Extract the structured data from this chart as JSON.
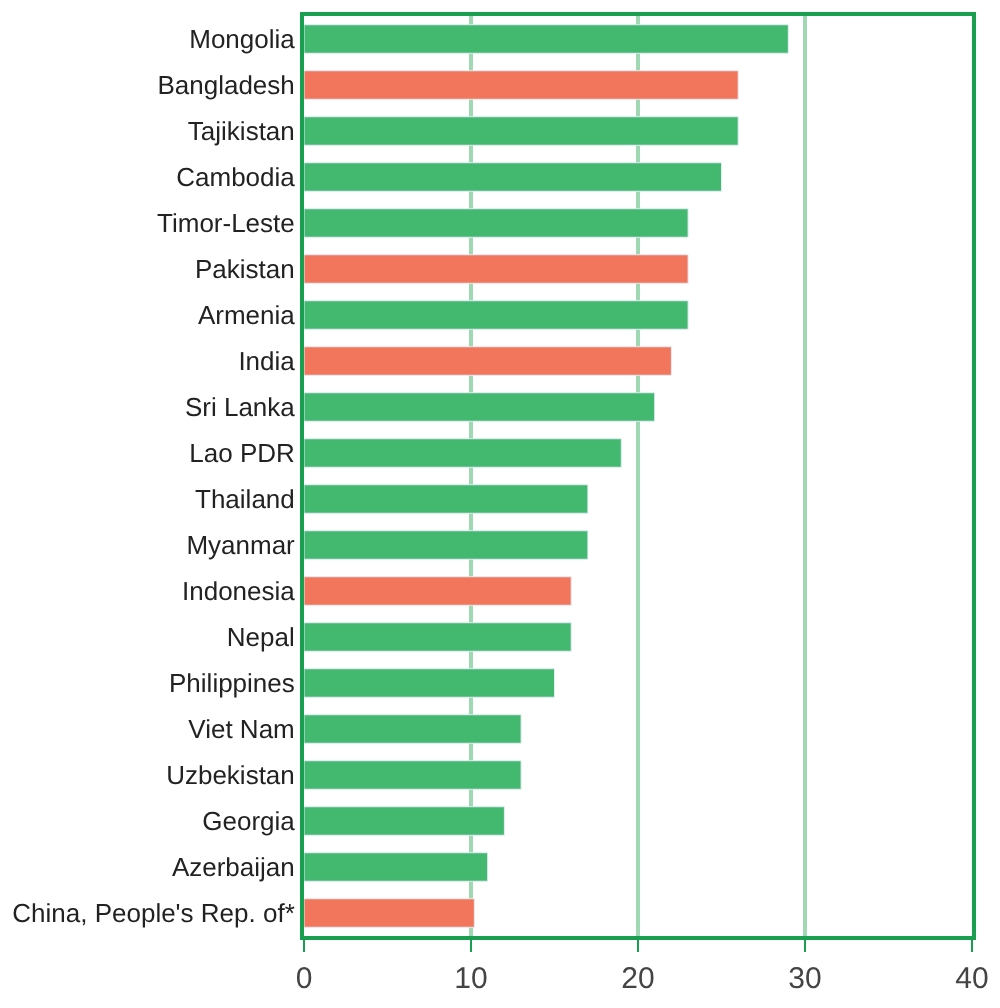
{
  "chart_data": {
    "type": "bar",
    "orientation": "horizontal",
    "categories": [
      "Mongolia",
      "Bangladesh",
      "Tajikistan",
      "Cambodia",
      "Timor-Leste",
      "Pakistan",
      "Armenia",
      "India",
      "Sri Lanka",
      "Lao PDR",
      "Thailand",
      "Myanmar",
      "Indonesia",
      "Nepal",
      "Philippines",
      "Viet Nam",
      "Uzbekistan",
      "Georgia",
      "Azerbaijan",
      "China, People's Rep. of*"
    ],
    "values": [
      29,
      26,
      26,
      25,
      23,
      23,
      23,
      22,
      21,
      19,
      17,
      17,
      16,
      16,
      15,
      13,
      13,
      12,
      11,
      10.2
    ],
    "colors": [
      "#43b970",
      "#f2765b",
      "#43b970",
      "#43b970",
      "#43b970",
      "#f2765b",
      "#43b970",
      "#f2765b",
      "#43b970",
      "#43b970",
      "#43b970",
      "#43b970",
      "#f2765b",
      "#43b970",
      "#43b970",
      "#43b970",
      "#43b970",
      "#43b970",
      "#43b970",
      "#f2765b"
    ],
    "xlim": [
      0,
      40
    ],
    "xticks": [
      0,
      10,
      20,
      30,
      40
    ],
    "grid": "x"
  }
}
